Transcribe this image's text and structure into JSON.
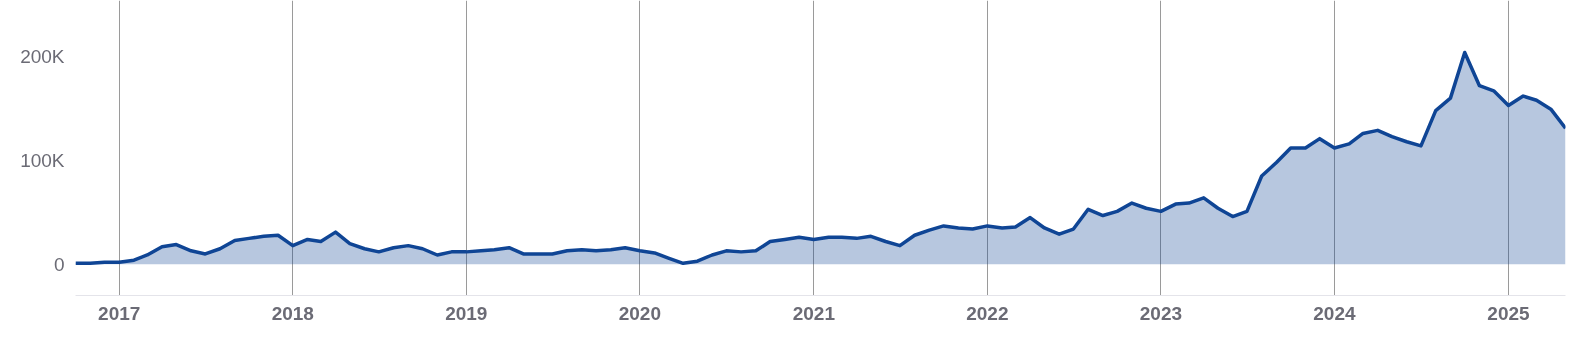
{
  "chart_data": {
    "type": "area",
    "x": [
      "2016-10",
      "2016-11",
      "2016-12",
      "2017-01",
      "2017-02",
      "2017-03",
      "2017-04",
      "2017-05",
      "2017-06",
      "2017-07",
      "2017-08",
      "2017-09",
      "2017-10",
      "2017-11",
      "2017-12",
      "2018-01",
      "2018-02",
      "2018-03",
      "2018-04",
      "2018-05",
      "2018-06",
      "2018-07",
      "2018-08",
      "2018-09",
      "2018-10",
      "2018-11",
      "2018-12",
      "2019-01",
      "2019-02",
      "2019-03",
      "2019-04",
      "2019-05",
      "2019-06",
      "2019-07",
      "2019-08",
      "2019-09",
      "2019-10",
      "2019-11",
      "2019-12",
      "2020-01",
      "2020-02",
      "2020-03",
      "2020-04",
      "2020-05",
      "2020-06",
      "2020-07",
      "2020-08",
      "2020-09",
      "2020-10",
      "2020-11",
      "2020-12",
      "2021-01",
      "2021-02",
      "2021-03",
      "2021-04",
      "2021-05",
      "2021-06",
      "2021-07",
      "2021-08",
      "2021-09",
      "2021-10",
      "2021-11",
      "2021-12",
      "2022-01",
      "2022-02",
      "2022-03",
      "2022-04",
      "2022-05",
      "2022-06",
      "2022-07",
      "2022-08",
      "2022-09",
      "2022-10",
      "2022-11",
      "2022-12",
      "2023-01",
      "2023-02",
      "2023-03",
      "2023-04",
      "2023-05",
      "2023-06",
      "2023-07",
      "2023-08",
      "2023-09",
      "2023-10",
      "2023-11",
      "2023-12",
      "2024-01",
      "2024-02",
      "2024-03",
      "2024-04",
      "2024-05",
      "2024-06",
      "2024-07",
      "2024-08",
      "2024-09",
      "2024-10",
      "2024-11",
      "2024-12",
      "2025-01",
      "2025-02",
      "2025-03",
      "2025-04",
      "2025-05"
    ],
    "series": [
      {
        "color": "#0f4595",
        "values": [
          1,
          1,
          2,
          2,
          4,
          9,
          17,
          19,
          13,
          10,
          15,
          23,
          25,
          27,
          28,
          18,
          24,
          22,
          31,
          20,
          15,
          12,
          16,
          18,
          15,
          9,
          12,
          12,
          13,
          14,
          16,
          10,
          10,
          10,
          13,
          14,
          13,
          14,
          16,
          13,
          11,
          6,
          1,
          3,
          9,
          13,
          12,
          13,
          22,
          24,
          26,
          24,
          26,
          26,
          25,
          27,
          22,
          18,
          28,
          33,
          37,
          35,
          34,
          37,
          35,
          36,
          45,
          35,
          29,
          34,
          53,
          47,
          51,
          59,
          54,
          51,
          58,
          59,
          64,
          54,
          46,
          51,
          85,
          98,
          112,
          112,
          121,
          112,
          116,
          126,
          129,
          123,
          118,
          114,
          148,
          160,
          204,
          172,
          167,
          153,
          162,
          158,
          149,
          131
        ]
      }
    ],
    "xlim": [
      "2016-10",
      "2025-05"
    ],
    "xticks": [
      "2017",
      "2018",
      "2019",
      "2020",
      "2021",
      "2022",
      "2023",
      "2024",
      "2025"
    ],
    "ylim": [
      -30,
      254
    ],
    "yticks": [
      {
        "value": 0,
        "label": "0"
      },
      {
        "value": 100,
        "label": "100K"
      },
      {
        "value": 200,
        "label": "200K"
      }
    ],
    "grid": "x"
  }
}
